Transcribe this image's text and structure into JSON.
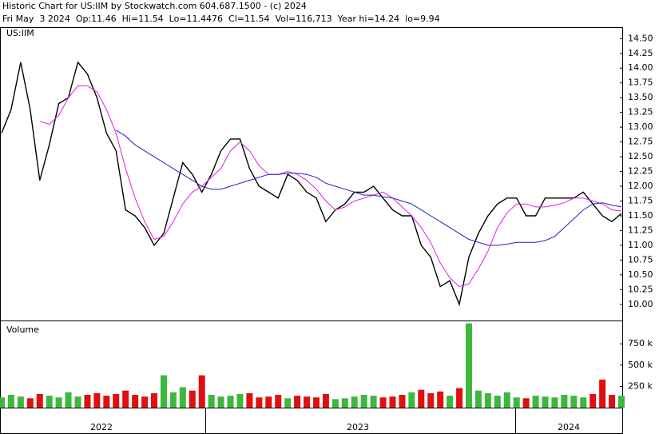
{
  "header": {
    "line1": "Historic Chart for US:IIM by Stockwatch.com 604.687.1500 - (c) 2024",
    "line2": "Fri May  3 2024  Op:11.46  Hi=11.54  Lo=11.4476  Cl=11.54  Vol=116,713  Year hi=14.24  lo=9.94"
  },
  "x_axis": {
    "labels": [
      "2022",
      "2023",
      "2024"
    ]
  },
  "chart_data": [
    {
      "type": "line",
      "label": "US:IIM",
      "ylim": [
        9.74,
        14.68
      ],
      "yticks": [
        {
          "value": 10,
          "label": "10.00"
        },
        {
          "value": 10.25,
          "label": "10.25"
        },
        {
          "value": 10.5,
          "label": "10.50"
        },
        {
          "value": 10.75,
          "label": "10.75"
        },
        {
          "value": 11,
          "label": "11.00"
        },
        {
          "value": 11.25,
          "label": "11.25"
        },
        {
          "value": 11.5,
          "label": "11.50"
        },
        {
          "value": 11.75,
          "label": "11.75"
        },
        {
          "value": 12,
          "label": "12.00"
        },
        {
          "value": 12.25,
          "label": "12.25"
        },
        {
          "value": 12.5,
          "label": "12.50"
        },
        {
          "value": 12.75,
          "label": "12.75"
        },
        {
          "value": 13,
          "label": "13.00"
        },
        {
          "value": 13.25,
          "label": "13.25"
        },
        {
          "value": 13.5,
          "label": "13.50"
        },
        {
          "value": 13.75,
          "label": "13.75"
        },
        {
          "value": 14,
          "label": "14.00"
        },
        {
          "value": 14.25,
          "label": "14.25"
        },
        {
          "value": 14.5,
          "label": "14.50"
        }
      ],
      "series": [
        {
          "color": "#000000",
          "values": [
            12.9,
            13.3,
            14.1,
            13.3,
            12.1,
            12.7,
            13.4,
            13.5,
            14.1,
            13.9,
            13.5,
            12.9,
            12.6,
            11.6,
            11.5,
            11.3,
            11.0,
            11.2,
            11.8,
            12.4,
            12.2,
            11.9,
            12.2,
            12.6,
            12.8,
            12.8,
            12.3,
            12.0,
            11.9,
            11.8,
            12.2,
            12.1,
            11.9,
            11.8,
            11.4,
            11.6,
            11.7,
            11.9,
            11.9,
            12.0,
            11.8,
            11.6,
            11.5,
            11.5,
            11.0,
            10.8,
            10.3,
            10.4,
            10.0,
            10.8,
            11.2,
            11.5,
            11.7,
            11.8,
            11.8,
            11.5,
            11.5,
            11.8,
            11.8,
            11.8,
            11.8,
            11.9,
            11.7,
            11.5,
            11.4,
            11.54
          ]
        },
        {
          "color": "#e020e0",
          "values": [
            null,
            null,
            null,
            null,
            13.1,
            13.05,
            13.2,
            13.5,
            13.7,
            13.7,
            13.6,
            13.3,
            12.9,
            12.3,
            11.8,
            11.4,
            11.1,
            11.15,
            11.4,
            11.7,
            11.9,
            12.0,
            12.15,
            12.3,
            12.6,
            12.75,
            12.6,
            12.35,
            12.2,
            12.2,
            12.25,
            12.2,
            12.1,
            11.95,
            11.75,
            11.6,
            11.65,
            11.75,
            11.8,
            11.85,
            11.9,
            11.8,
            11.65,
            11.5,
            11.3,
            11.05,
            10.7,
            10.45,
            10.3,
            10.35,
            10.6,
            10.9,
            11.3,
            11.55,
            11.7,
            11.7,
            11.65,
            11.65,
            11.68,
            11.72,
            11.8,
            11.8,
            11.75,
            11.7,
            11.6,
            11.58
          ]
        },
        {
          "color": "#2020c0",
          "values": [
            null,
            null,
            null,
            null,
            null,
            null,
            null,
            null,
            null,
            null,
            null,
            null,
            12.95,
            12.85,
            12.7,
            12.6,
            12.5,
            12.4,
            12.3,
            12.2,
            12.1,
            12.0,
            11.95,
            11.95,
            12.0,
            12.05,
            12.1,
            12.15,
            12.2,
            12.2,
            12.22,
            12.22,
            12.2,
            12.15,
            12.05,
            12.0,
            11.95,
            11.9,
            11.85,
            11.85,
            11.82,
            11.8,
            11.75,
            11.7,
            11.6,
            11.5,
            11.4,
            11.3,
            11.2,
            11.1,
            11.05,
            11.0,
            11.0,
            11.02,
            11.05,
            11.05,
            11.05,
            11.08,
            11.15,
            11.3,
            11.45,
            11.6,
            11.7,
            11.72,
            11.68,
            11.65
          ]
        }
      ]
    },
    {
      "type": "bar",
      "label": "Volume",
      "ylim": [
        0,
        1015000
      ],
      "yticks": [
        {
          "value": 250000,
          "label": "250 k"
        },
        {
          "value": 500000,
          "label": "500 k"
        },
        {
          "value": 750000,
          "label": "750 k"
        }
      ],
      "up_color": "#3cb83c",
      "down_color": "#e01010",
      "values": [
        120000,
        150000,
        130000,
        110000,
        160000,
        140000,
        120000,
        180000,
        130000,
        150000,
        170000,
        140000,
        160000,
        200000,
        150000,
        130000,
        170000,
        380000,
        180000,
        240000,
        200000,
        380000,
        150000,
        130000,
        140000,
        160000,
        170000,
        120000,
        130000,
        150000,
        110000,
        140000,
        130000,
        120000,
        160000,
        100000,
        110000,
        130000,
        150000,
        140000,
        120000,
        130000,
        150000,
        180000,
        210000,
        170000,
        190000,
        140000,
        230000,
        990000,
        200000,
        170000,
        140000,
        180000,
        120000,
        110000,
        140000,
        130000,
        120000,
        150000,
        140000,
        120000,
        160000,
        330000,
        150000,
        140000
      ]
    }
  ]
}
